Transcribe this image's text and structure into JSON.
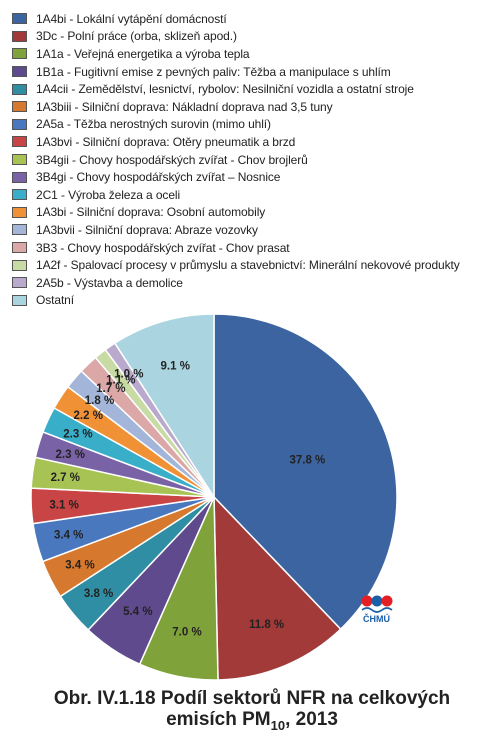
{
  "chart_data": {
    "type": "pie",
    "categories": [
      "1A4bi - Lokální vytápění domácností",
      "3Dc - Polní práce (orba, sklizeň apod.)",
      "1A1a - Veřejná energetika a výroba tepla",
      "1B1a - Fugitivní emise z pevných paliv: Těžba a manipulace s uhlím",
      "1A4cii - Zemědělství, lesnictví, rybolov: Nesilniční vozidla a ostatní stroje",
      "1A3biii - Silniční doprava: Nákladní doprava nad 3,5 tuny",
      "2A5a - Těžba nerostných surovin (mimo uhlí)",
      "1A3bvi - Silniční doprava: Otěry pneumatik a brzd",
      "3B4gii - Chovy hospodářských zvířat - Chov brojlerů",
      "3B4gi - Chovy hospodářských zvířat – Nosnice",
      "2C1 - Výroba železa a oceli",
      "1A3bi - Silniční doprava: Osobní automobily",
      "1A3bvii - Silniční doprava: Abraze vozovky",
      "3B3 - Chovy hospodářských zvířat - Chov prasat",
      "1A2f - Spalovací procesy v průmyslu a stavebnictví: Minerální nekovové produkty",
      "2A5b - Výstavba a demolice",
      "Ostatní"
    ],
    "values": [
      37.8,
      11.8,
      7.0,
      5.4,
      3.8,
      3.4,
      3.4,
      3.1,
      2.7,
      2.3,
      2.3,
      2.2,
      1.8,
      1.7,
      1.1,
      1.0,
      9.1
    ],
    "value_labels": [
      "37.8 %",
      "11.8 %",
      "7.0 %",
      "5.4 %",
      "3.8 %",
      "3.4 %",
      "3.4 %",
      "3.1 %",
      "2.7 %",
      "2.3 %",
      "2.3 %",
      "2.2 %",
      "1.8 %",
      "1.7 %",
      "1.1 %",
      "1.0 %",
      "9.1 %"
    ],
    "colors": [
      "#3c64a0",
      "#a23a3a",
      "#7fa23a",
      "#5e4a8c",
      "#2f8ea3",
      "#d6782e",
      "#4a78bf",
      "#c94444",
      "#a7c353",
      "#7a62a6",
      "#38aec8",
      "#f19136",
      "#a3b5d8",
      "#dba7a7",
      "#c9dba4",
      "#b9aacd",
      "#a9d4e0"
    ],
    "legend_position": "top",
    "title": "Obr. IV.1.18  Podíl sektorů NFR na celkových emisích PM10, 2013"
  },
  "caption": {
    "line1": "Obr. IV.1.18  Podíl sektorů NFR na celkových",
    "line2_prefix": "emisích PM",
    "line2_sub": "10",
    "line2_suffix": ", 2013"
  },
  "logo": {
    "text": "ČHMÚ",
    "colors": [
      "#e31e24",
      "#1b5fa8"
    ]
  }
}
